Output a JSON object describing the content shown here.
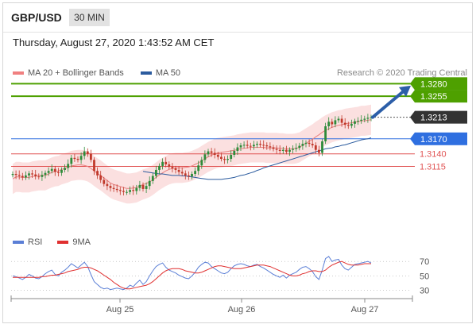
{
  "header": {
    "symbol": "GBP/USD",
    "timeframe": "30 MIN"
  },
  "timestamp": "Thursday, August 27, 2020 1:43:52 AM CET",
  "legend": {
    "ma_bollinger": {
      "label": "MA 20 + Bollinger Bands",
      "color": "#f08080"
    },
    "ma50": {
      "label": "MA 50",
      "color": "#2b5b9e"
    }
  },
  "credit": "Research © 2020 Trading Central",
  "rsi_legend": {
    "rsi": {
      "label": "RSI",
      "color": "#5b7fd6"
    },
    "ma9": {
      "label": "9MA",
      "color": "#e03030"
    }
  },
  "colors": {
    "up": "#2e8b3a",
    "down": "#c0392b",
    "target": "#4ea000",
    "pivot": "#2f6fe0",
    "support": "#e05050",
    "last": "#333333",
    "band": "#f7c6c6",
    "arrow": "#2c5ea8"
  },
  "chart_data": [
    {
      "type": "candlestick",
      "title": "GBP/USD",
      "x_ticks": [
        "Aug 25",
        "Aug 26",
        "Aug 27"
      ],
      "ylim": [
        1.3005,
        1.329
      ],
      "last_price": 1.3213,
      "levels": [
        {
          "value": 1.328,
          "label": "1.3280",
          "kind": "target"
        },
        {
          "value": 1.3255,
          "label": "1.3255",
          "kind": "target"
        },
        {
          "value": 1.3213,
          "label": "1.3213",
          "kind": "last"
        },
        {
          "value": 1.317,
          "label": "1.3170",
          "kind": "pivot"
        },
        {
          "value": 1.314,
          "label": "1.3140",
          "kind": "support"
        },
        {
          "value": 1.3115,
          "label": "1.3115",
          "kind": "support"
        }
      ],
      "series_close": [
        1.31,
        1.3098,
        1.3096,
        1.3093,
        1.3097,
        1.3101,
        1.3099,
        1.3095,
        1.3094,
        1.3098,
        1.3102,
        1.3106,
        1.311,
        1.3104,
        1.3102,
        1.3108,
        1.3112,
        1.312,
        1.3132,
        1.313,
        1.3128,
        1.3136,
        1.3145,
        1.314,
        1.3128,
        1.3106,
        1.3097,
        1.3088,
        1.308,
        1.3076,
        1.3072,
        1.307,
        1.3068,
        1.3066,
        1.3064,
        1.3064,
        1.3068,
        1.3066,
        1.3072,
        1.3078,
        1.307,
        1.3076,
        1.3086,
        1.3096,
        1.3108,
        1.3116,
        1.3124,
        1.3119,
        1.3114,
        1.3111,
        1.3108,
        1.3104,
        1.3101,
        1.3097,
        1.3095,
        1.31,
        1.3106,
        1.3117,
        1.3128,
        1.3139,
        1.3145,
        1.3142,
        1.3138,
        1.3134,
        1.313,
        1.3128,
        1.313,
        1.3138,
        1.3146,
        1.3153,
        1.3157,
        1.3158,
        1.3156,
        1.3155,
        1.3158,
        1.316,
        1.3158,
        1.3157,
        1.3155,
        1.3153,
        1.315,
        1.3148,
        1.3146,
        1.3148,
        1.3144,
        1.3148,
        1.315,
        1.3152,
        1.3156,
        1.316,
        1.3162,
        1.316,
        1.3157,
        1.3148,
        1.3142,
        1.3165,
        1.3195,
        1.3204,
        1.3199,
        1.3207,
        1.321,
        1.3202,
        1.3198,
        1.3196,
        1.32,
        1.3205,
        1.3206,
        1.3208,
        1.321,
        1.3212,
        1.3213
      ],
      "ma20": [
        1.309,
        1.3094,
        1.3094,
        1.3093,
        1.3093,
        1.3093,
        1.3095,
        1.3096,
        1.3097,
        1.3097,
        1.3097,
        1.31,
        1.3103,
        1.3105,
        1.3106,
        1.3109,
        1.3111,
        1.3113,
        1.3116,
        1.3117,
        1.3118,
        1.3118,
        1.3117,
        1.3115,
        1.3111,
        1.3106,
        1.3101,
        1.3097,
        1.3092,
        1.3087,
        1.3082,
        1.3079,
        1.3077,
        1.3075,
        1.3073,
        1.3071,
        1.3071,
        1.3072,
        1.3073,
        1.3076,
        1.3079,
        1.3081,
        1.3084,
        1.3088,
        1.3093,
        1.3098,
        1.3102,
        1.3106,
        1.3109,
        1.3111,
        1.3112,
        1.3112,
        1.3112,
        1.3113,
        1.3114,
        1.3116,
        1.3119,
        1.3122,
        1.3126,
        1.313,
        1.3134,
        1.3137,
        1.314,
        1.3142,
        1.3143,
        1.3144,
        1.3145,
        1.3146,
        1.3147,
        1.3149,
        1.315,
        1.3151,
        1.3152,
        1.3153,
        1.3153,
        1.3153,
        1.3153,
        1.3153,
        1.3152,
        1.3152,
        1.3152,
        1.3152,
        1.3151,
        1.3151,
        1.315,
        1.315,
        1.315,
        1.3151,
        1.3153,
        1.3157,
        1.3161,
        1.3165,
        1.3169,
        1.3174,
        1.3178,
        1.3183,
        1.3187,
        1.319,
        1.3193,
        1.3195,
        1.3197,
        1.3198,
        1.32,
        1.3201,
        1.3202,
        1.3203,
        1.3204,
        1.3206,
        1.3206,
        1.3207,
        1.3208
      ],
      "ma50": [
        1.3105,
        1.3104,
        1.3103,
        1.3102,
        1.3101,
        1.31,
        1.31,
        1.3099,
        1.3098,
        1.3097,
        1.3097,
        1.3097,
        1.3096,
        1.3096,
        1.3095,
        1.3094,
        1.3093,
        1.3092,
        1.3091,
        1.309,
        1.3089,
        1.3089,
        1.3089,
        1.3089,
        1.3089,
        1.309,
        1.3091,
        1.3092,
        1.3093,
        1.3095,
        1.3097,
        1.3098,
        1.31,
        1.3102,
        1.3104,
        1.3107,
        1.3109,
        1.3112,
        1.3114,
        1.3116,
        1.3118,
        1.312,
        1.3122,
        1.3124,
        1.3126,
        1.3128,
        1.313,
        1.3132,
        1.3134,
        1.3136,
        1.3138,
        1.314,
        1.3142,
        1.3144,
        1.3146,
        1.3148,
        1.315,
        1.3151,
        1.3152,
        1.3154,
        1.3155,
        1.3157,
        1.3158,
        1.316,
        1.3162,
        1.3164,
        1.3166,
        1.3168,
        1.3169,
        1.317,
        1.3172
      ],
      "bb_width": 0.003,
      "arrow": {
        "from": 1.3213,
        "to": 1.3276
      }
    },
    {
      "type": "line",
      "title": "RSI",
      "y_ticks": [
        70,
        50,
        30
      ],
      "ylim": [
        25,
        78
      ],
      "series": [
        {
          "name": "RSI",
          "values": [
            50,
            49,
            47,
            45,
            48,
            52,
            50,
            47,
            46,
            49,
            53,
            56,
            58,
            52,
            50,
            55,
            58,
            62,
            67,
            64,
            61,
            65,
            69,
            63,
            52,
            42,
            38,
            34,
            32,
            33,
            31,
            32,
            33,
            32,
            31,
            33,
            37,
            35,
            40,
            44,
            38,
            42,
            50,
            57,
            63,
            66,
            68,
            62,
            58,
            56,
            54,
            51,
            49,
            47,
            46,
            50,
            55,
            62,
            66,
            69,
            68,
            63,
            60,
            57,
            54,
            53,
            55,
            60,
            64,
            66,
            67,
            66,
            64,
            63,
            65,
            66,
            63,
            61,
            58,
            55,
            52,
            50,
            48,
            51,
            47,
            51,
            53,
            55,
            59,
            62,
            63,
            60,
            56,
            49,
            45,
            58,
            74,
            77,
            70,
            72,
            73,
            65,
            60,
            58,
            62,
            66,
            67,
            68,
            69,
            70,
            68
          ]
        },
        {
          "name": "9MA",
          "values": [
            48,
            48,
            48,
            48,
            48,
            48,
            48,
            48,
            48,
            49,
            49,
            50,
            51,
            51,
            52,
            53,
            54,
            56,
            57,
            58,
            59,
            61,
            62,
            62,
            61,
            59,
            57,
            54,
            51,
            48,
            45,
            41,
            38,
            35,
            33,
            32,
            32,
            33,
            34,
            35,
            36,
            37,
            39,
            42,
            46,
            50,
            54,
            57,
            59,
            60,
            60,
            60,
            59,
            57,
            56,
            55,
            54,
            54,
            55,
            57,
            59,
            61,
            63,
            64,
            64,
            63,
            62,
            61,
            60,
            60,
            60,
            61,
            62,
            63,
            64,
            65,
            65,
            65,
            64,
            63,
            61,
            59,
            57,
            55,
            53,
            51,
            50,
            50,
            51,
            53,
            54,
            56,
            57,
            57,
            56,
            56,
            58,
            62,
            65,
            67,
            69,
            70,
            68,
            66,
            65,
            65,
            65,
            66,
            67,
            67,
            67
          ]
        }
      ]
    }
  ]
}
